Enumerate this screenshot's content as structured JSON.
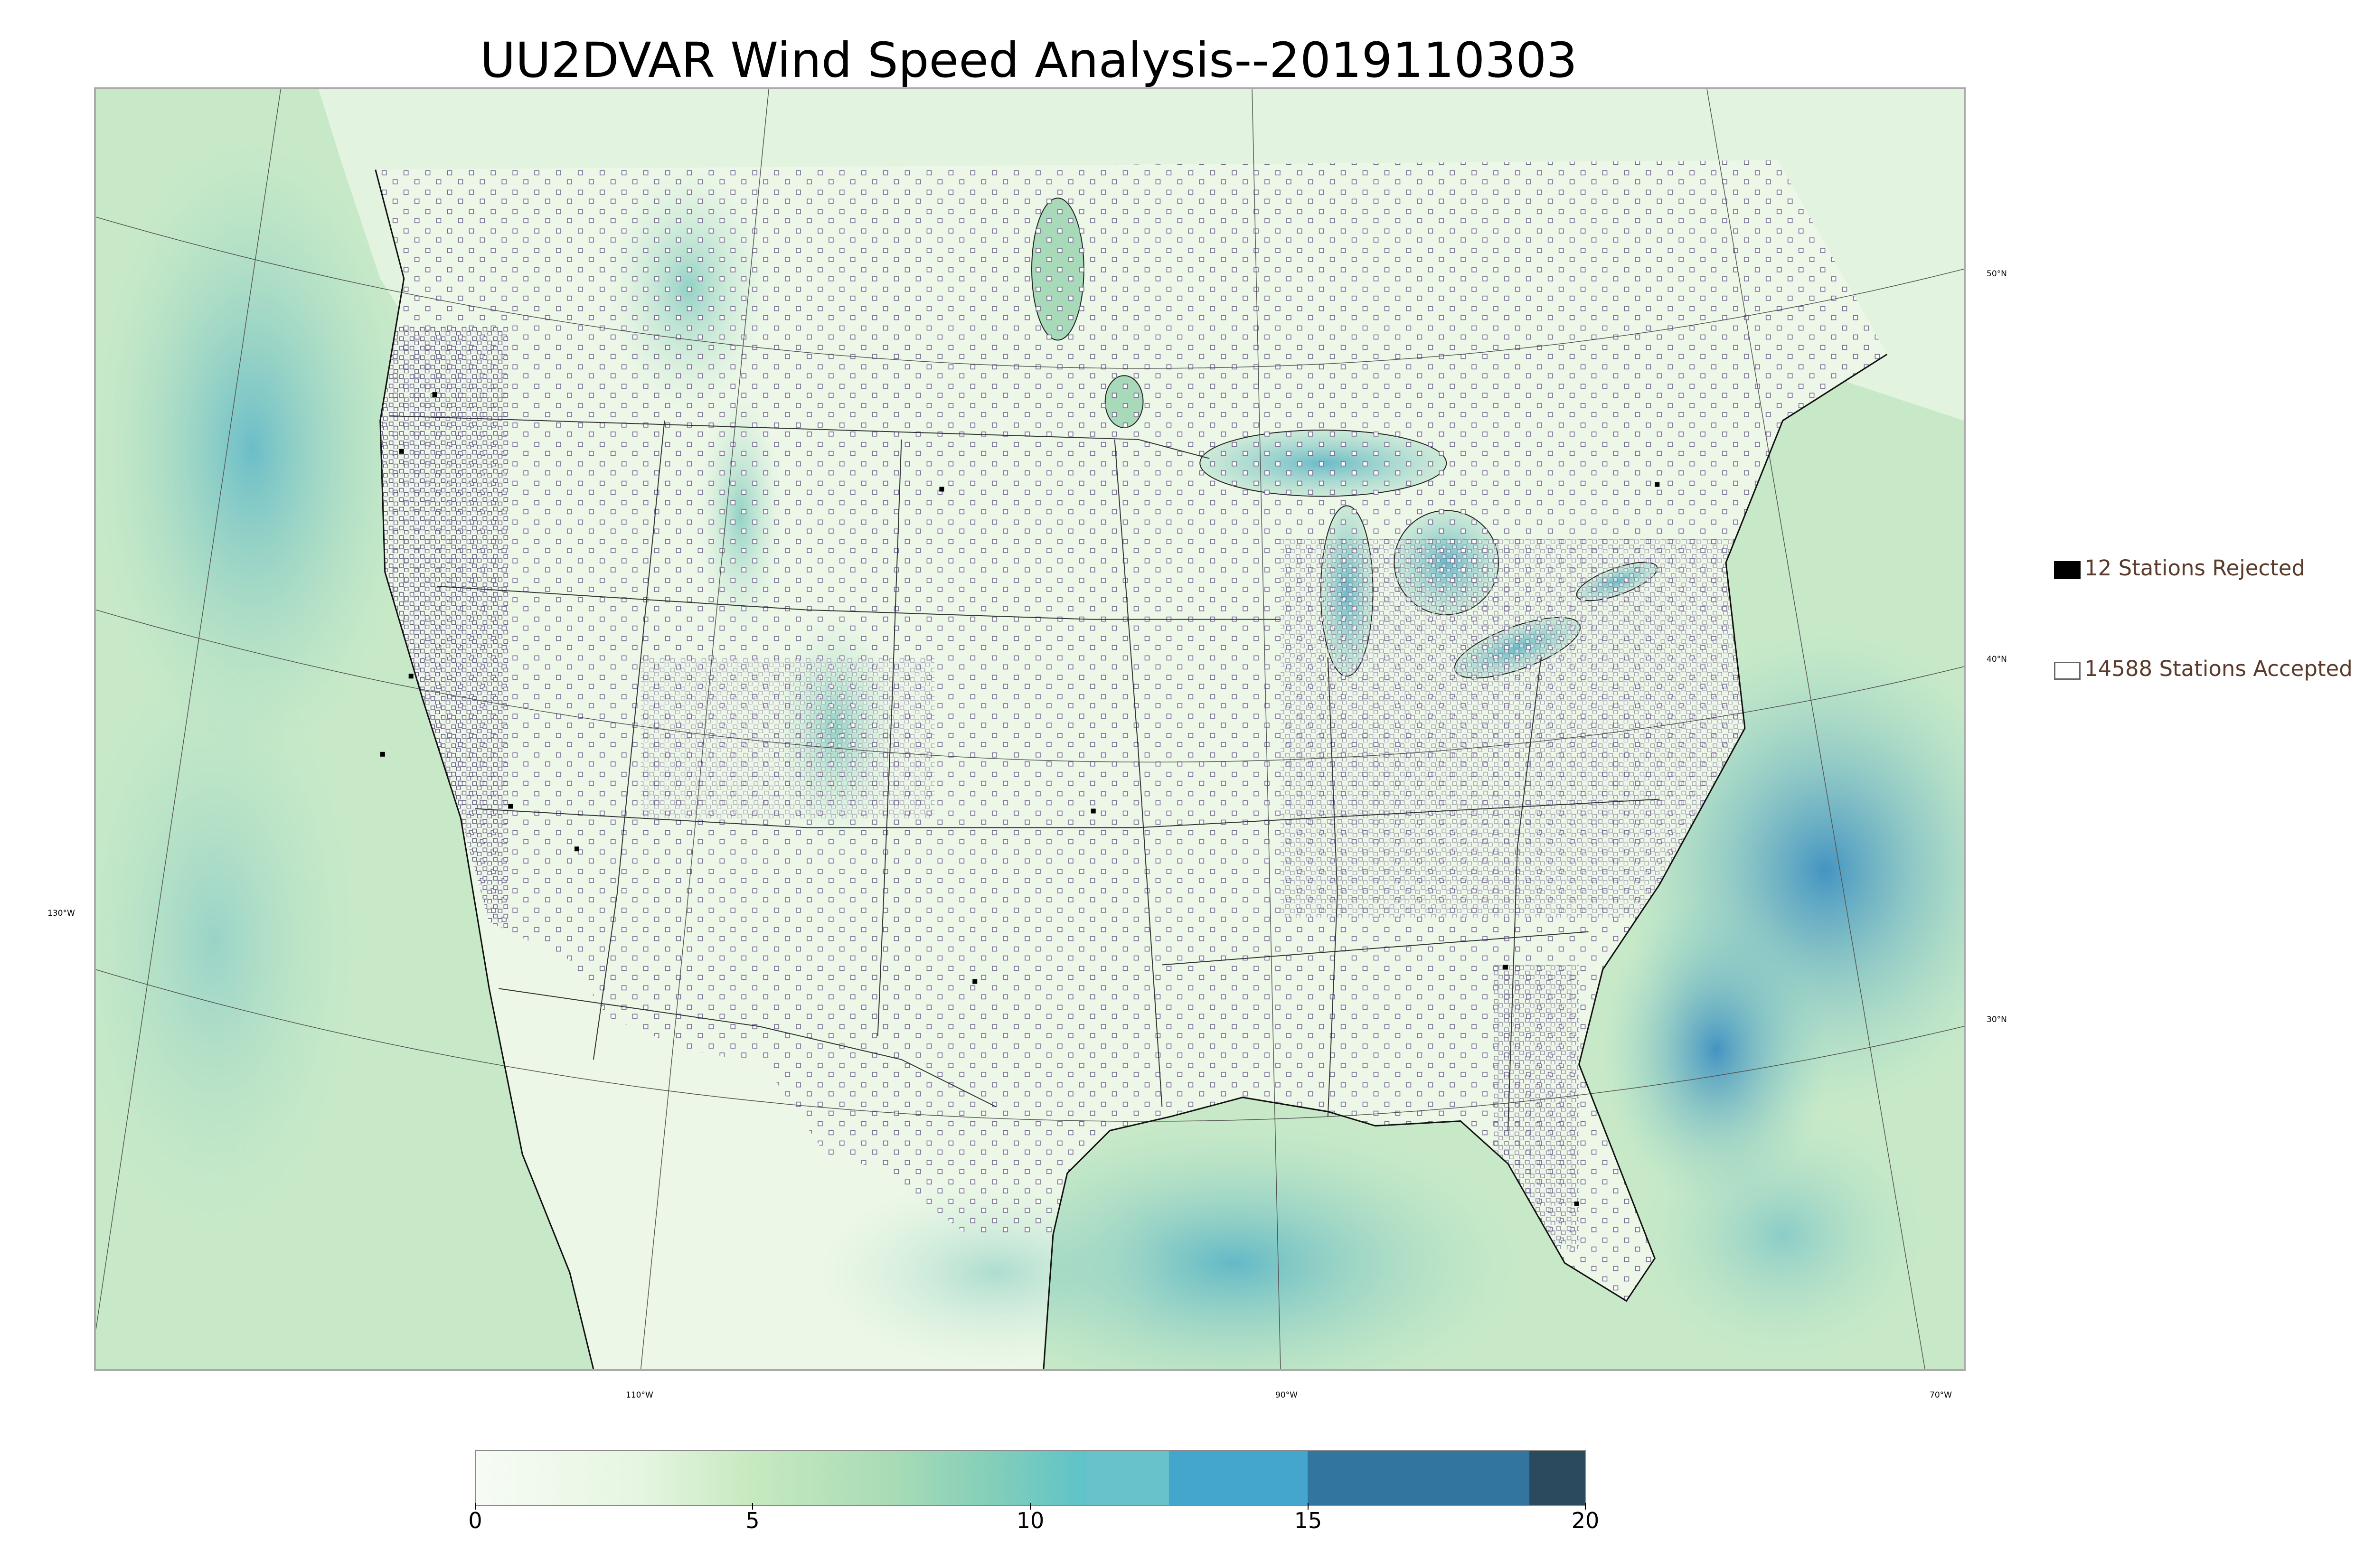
{
  "title": "UU2DVAR Wind Speed Analysis--2019110303",
  "map": {
    "latitude_labels": [
      "50°N",
      "40°N",
      "30°N"
    ],
    "longitude_labels": [
      "130°W",
      "110°W",
      "90°W",
      "70°W"
    ],
    "land_color": "#dff0d8",
    "ocean_color": "#b3e0c0",
    "station_marker": "open-square"
  },
  "legend": {
    "rejected": {
      "label": "12 Stations Rejected",
      "count": 12,
      "color": "#000000"
    },
    "accepted": {
      "label": "14588 Stations Accepted",
      "count": 14588,
      "color": "#ffffff"
    }
  },
  "colorbar": {
    "min": 0,
    "max": 20,
    "ticks": [
      "0",
      "5",
      "10",
      "15",
      "20"
    ],
    "stops": [
      {
        "value": 0,
        "color": "#f7fcf5"
      },
      {
        "value": 3,
        "color": "#e5f5e0"
      },
      {
        "value": 5,
        "color": "#c7e9c0"
      },
      {
        "value": 7.5,
        "color": "#a8dcb5"
      },
      {
        "value": 9.5,
        "color": "#7fcdbb"
      },
      {
        "value": 11,
        "color": "#5ec3c9"
      },
      {
        "value": 12.5,
        "color": "#44a8cf"
      },
      {
        "value": 15,
        "color": "#3b8bbf"
      },
      {
        "value": 17.5,
        "color": "#32759e"
      },
      {
        "value": 20,
        "color": "#2c4a5e"
      }
    ],
    "bands": [
      {
        "from": 11,
        "to": 12.5,
        "color": "#68c2cc"
      },
      {
        "from": 12.5,
        "to": 15,
        "color": "#44a6cd"
      },
      {
        "from": 15,
        "to": 19,
        "color": "#3276a0"
      },
      {
        "from": 19,
        "to": 20,
        "color": "#2c4a5e"
      }
    ]
  }
}
